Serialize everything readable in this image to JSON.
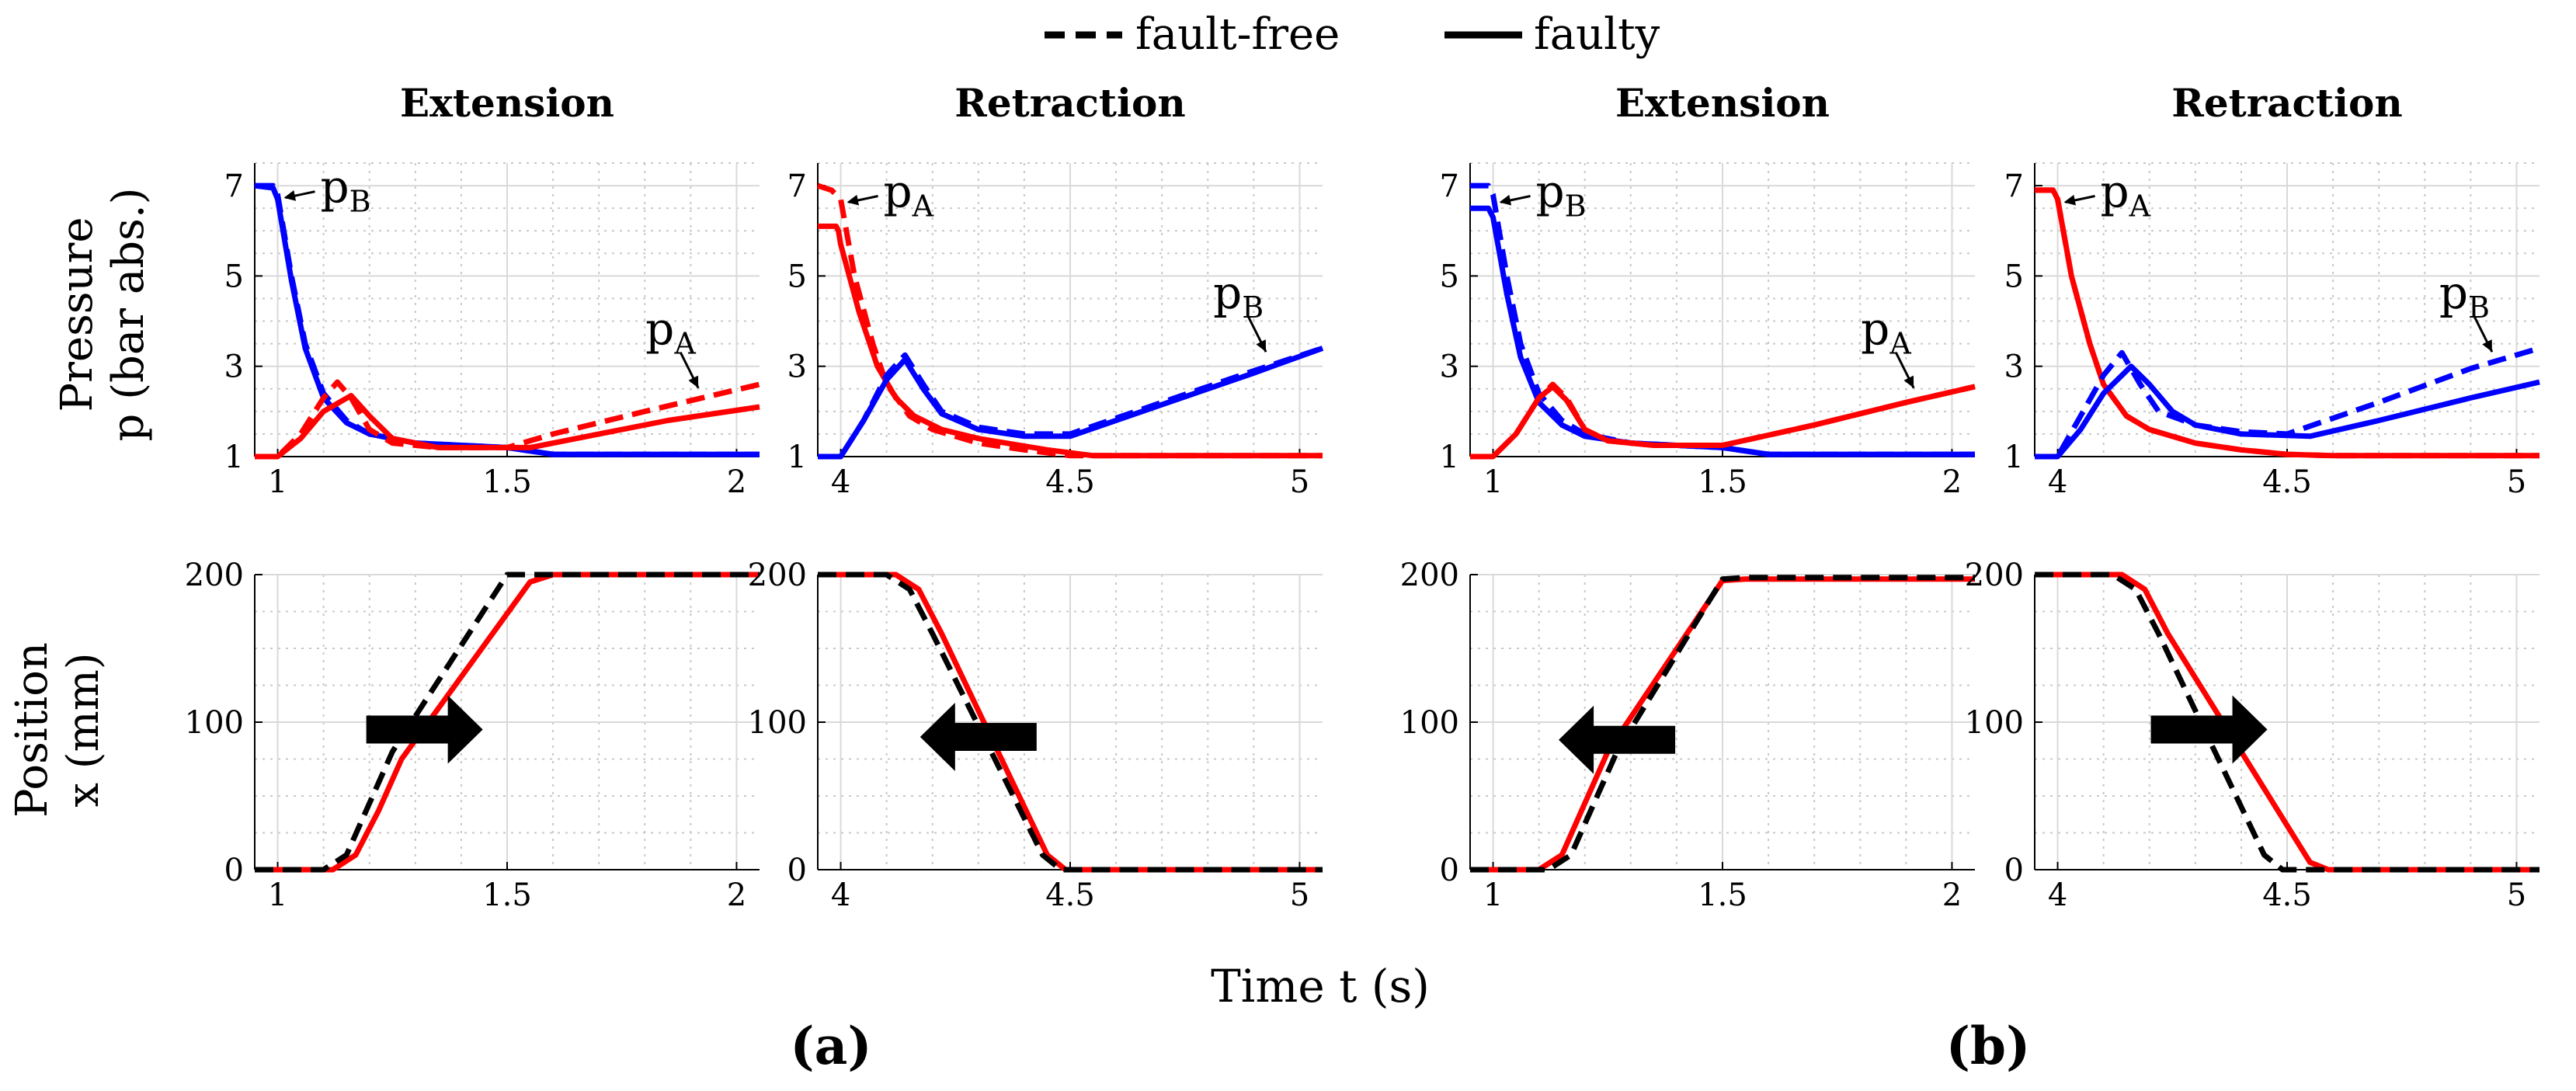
{
  "legend": {
    "dashed_label": "fault-free",
    "solid_label": "faulty"
  },
  "figure": {
    "xlabel": "Time t (s)",
    "row_labels": {
      "pressure_line1": "Pressure",
      "pressure_line2": "p (bar abs.)",
      "position_line1": "Position",
      "position_line2": "x (mm)"
    },
    "sub_labels": [
      "(a)",
      "(b)"
    ]
  },
  "colors": {
    "pA": "#ff0000",
    "pB": "#0000ff",
    "fault_free_position": "#000000",
    "faulty_position": "#ff0000",
    "grid_minor": "#c8c8c8",
    "grid_major": "#d9d9d9"
  },
  "chart_data": [
    {
      "id": "a-ext-p",
      "type": "line",
      "title": "Extension",
      "xlim": [
        0.95,
        2.05
      ],
      "ylim": [
        1,
        7.5
      ],
      "xticks": [
        1,
        1.5,
        2
      ],
      "xtick_labels": [
        "1",
        "1.5",
        "2"
      ],
      "yticks": [
        1,
        3,
        5,
        7
      ],
      "ytick_labels": [
        "1",
        "3",
        "5",
        "7"
      ],
      "ylabel": "Pressure p (bar abs.)",
      "xlabel": "",
      "annotations": [
        {
          "main": "p",
          "sub": "B",
          "series": "pB",
          "x": 1.0,
          "y": 6.8,
          "pos": "right"
        },
        {
          "main": "p",
          "sub": "A",
          "series": "pA",
          "x": 1.92,
          "y": 2.45,
          "pos": "above-left"
        }
      ],
      "series": [
        {
          "name": "pB fault-free",
          "color_key": "pB",
          "dash": true,
          "x": [
            0.95,
            0.99,
            1.0,
            1.03,
            1.06,
            1.1,
            1.15,
            1.2,
            1.3,
            1.5,
            1.6,
            2.05
          ],
          "y": [
            7.0,
            7.0,
            6.8,
            5.0,
            3.5,
            2.4,
            1.8,
            1.5,
            1.3,
            1.2,
            1.05,
            1.05
          ]
        },
        {
          "name": "pB faulty",
          "color_key": "pB",
          "dash": false,
          "x": [
            0.95,
            0.99,
            1.0,
            1.03,
            1.06,
            1.1,
            1.15,
            1.2,
            1.3,
            1.5,
            1.6,
            2.05
          ],
          "y": [
            7.0,
            6.95,
            6.7,
            4.9,
            3.4,
            2.3,
            1.75,
            1.5,
            1.3,
            1.2,
            1.05,
            1.05
          ]
        },
        {
          "name": "pA fault-free",
          "color_key": "pA",
          "dash": true,
          "x": [
            0.95,
            1.0,
            1.05,
            1.1,
            1.13,
            1.16,
            1.2,
            1.25,
            1.35,
            1.5,
            1.6,
            1.8,
            2.05
          ],
          "y": [
            1.0,
            1.0,
            1.5,
            2.3,
            2.65,
            2.3,
            1.6,
            1.3,
            1.2,
            1.2,
            1.5,
            2.0,
            2.6
          ]
        },
        {
          "name": "pA faulty",
          "color_key": "pA",
          "dash": false,
          "x": [
            0.95,
            1.0,
            1.05,
            1.1,
            1.16,
            1.2,
            1.25,
            1.35,
            1.55,
            1.7,
            1.85,
            2.05
          ],
          "y": [
            1.0,
            1.0,
            1.4,
            2.0,
            2.35,
            1.9,
            1.4,
            1.2,
            1.2,
            1.5,
            1.8,
            2.1
          ]
        }
      ]
    },
    {
      "id": "a-ret-p",
      "type": "line",
      "title": "Retraction",
      "xlim": [
        3.95,
        5.05
      ],
      "ylim": [
        1,
        7.5
      ],
      "xticks": [
        4,
        4.5,
        5
      ],
      "xtick_labels": [
        "4",
        "4.5",
        "5"
      ],
      "yticks": [
        1,
        3,
        5,
        7
      ],
      "ytick_labels": [
        "1",
        "3",
        "5",
        "7"
      ],
      "ylabel": "",
      "xlabel": "",
      "annotations": [
        {
          "main": "p",
          "sub": "A",
          "series": "pA",
          "x": 4.0,
          "y": 6.7,
          "pos": "right"
        },
        {
          "main": "p",
          "sub": "B",
          "series": "pB",
          "x": 4.93,
          "y": 3.25,
          "pos": "above-left"
        }
      ],
      "series": [
        {
          "name": "pA fault-free",
          "color_key": "pA",
          "dash": true,
          "x": [
            3.95,
            3.98,
            4.0,
            4.03,
            4.07,
            4.1,
            4.15,
            4.2,
            4.3,
            4.4,
            4.5,
            5.05
          ],
          "y": [
            7.0,
            6.9,
            6.7,
            5.0,
            3.5,
            2.6,
            1.9,
            1.6,
            1.3,
            1.15,
            1.02,
            1.02
          ]
        },
        {
          "name": "pA faulty",
          "color_key": "pA",
          "dash": false,
          "x": [
            3.95,
            3.99,
            3.995,
            4.0,
            4.04,
            4.08,
            4.12,
            4.16,
            4.22,
            4.3,
            4.45,
            4.55,
            5.05
          ],
          "y": [
            6.1,
            6.1,
            6.0,
            5.7,
            4.2,
            3.0,
            2.3,
            1.9,
            1.6,
            1.4,
            1.15,
            1.02,
            1.02
          ]
        },
        {
          "name": "pB fault-free",
          "color_key": "pB",
          "dash": true,
          "x": [
            3.95,
            4.0,
            4.05,
            4.1,
            4.14,
            4.18,
            4.22,
            4.3,
            4.4,
            4.5,
            4.7,
            4.9,
            5.05
          ],
          "y": [
            1.0,
            1.0,
            1.8,
            2.8,
            3.25,
            2.6,
            2.0,
            1.65,
            1.5,
            1.5,
            2.2,
            2.9,
            3.4
          ]
        },
        {
          "name": "pB faulty",
          "color_key": "pB",
          "dash": false,
          "x": [
            3.95,
            4.0,
            4.05,
            4.1,
            4.14,
            4.18,
            4.22,
            4.3,
            4.4,
            4.5,
            4.7,
            4.9,
            5.05
          ],
          "y": [
            1.0,
            1.0,
            1.8,
            2.7,
            3.15,
            2.5,
            1.95,
            1.6,
            1.45,
            1.45,
            2.15,
            2.85,
            3.4
          ]
        }
      ]
    },
    {
      "id": "b-ext-p",
      "type": "line",
      "title": "Extension",
      "xlim": [
        0.95,
        2.05
      ],
      "ylim": [
        1,
        7.5
      ],
      "xticks": [
        1,
        1.5,
        2
      ],
      "xtick_labels": [
        "1",
        "1.5",
        "2"
      ],
      "yticks": [
        1,
        3,
        5,
        7
      ],
      "ytick_labels": [
        "1",
        "3",
        "5",
        "7"
      ],
      "ylabel": "",
      "xlabel": "",
      "annotations": [
        {
          "main": "p",
          "sub": "B",
          "series": "pB",
          "x": 1.0,
          "y": 6.7,
          "pos": "right"
        },
        {
          "main": "p",
          "sub": "A",
          "series": "pA",
          "x": 1.92,
          "y": 2.45,
          "pos": "above-left"
        }
      ],
      "series": [
        {
          "name": "pB fault-free",
          "color_key": "pB",
          "dash": true,
          "x": [
            0.95,
            0.99,
            1.0,
            1.03,
            1.06,
            1.1,
            1.15,
            1.2,
            1.3,
            1.5,
            1.6,
            2.05
          ],
          "y": [
            7.0,
            7.0,
            6.8,
            5.0,
            3.5,
            2.4,
            1.8,
            1.5,
            1.3,
            1.2,
            1.05,
            1.05
          ]
        },
        {
          "name": "pB faulty",
          "color_key": "pB",
          "dash": false,
          "x": [
            0.95,
            0.99,
            1.0,
            1.03,
            1.06,
            1.1,
            1.15,
            1.2,
            1.3,
            1.5,
            1.6,
            2.05
          ],
          "y": [
            6.5,
            6.5,
            6.3,
            4.6,
            3.2,
            2.2,
            1.7,
            1.45,
            1.3,
            1.2,
            1.05,
            1.05
          ]
        },
        {
          "name": "pA fault-free",
          "color_key": "pA",
          "dash": true,
          "x": [
            0.95,
            1.0,
            1.05,
            1.1,
            1.13,
            1.16,
            1.2,
            1.25,
            1.35,
            1.5,
            1.7,
            1.9,
            2.05
          ],
          "y": [
            1.0,
            1.0,
            1.5,
            2.3,
            2.6,
            2.3,
            1.6,
            1.35,
            1.25,
            1.25,
            1.7,
            2.2,
            2.55
          ]
        },
        {
          "name": "pA faulty",
          "color_key": "pA",
          "dash": false,
          "x": [
            0.95,
            1.0,
            1.05,
            1.1,
            1.13,
            1.16,
            1.2,
            1.25,
            1.35,
            1.5,
            1.7,
            1.9,
            2.05
          ],
          "y": [
            1.0,
            1.0,
            1.5,
            2.3,
            2.55,
            2.25,
            1.6,
            1.35,
            1.25,
            1.25,
            1.7,
            2.2,
            2.55
          ]
        }
      ]
    },
    {
      "id": "b-ret-p",
      "type": "line",
      "title": "Retraction",
      "xlim": [
        3.95,
        5.05
      ],
      "ylim": [
        1,
        7.5
      ],
      "xticks": [
        4,
        4.5,
        5
      ],
      "xtick_labels": [
        "4",
        "4.5",
        "5"
      ],
      "yticks": [
        1,
        3,
        5,
        7
      ],
      "ytick_labels": [
        "1",
        "3",
        "5",
        "7"
      ],
      "ylabel": "",
      "xlabel": "",
      "annotations": [
        {
          "main": "p",
          "sub": "A",
          "series": "pA",
          "x": 4.0,
          "y": 6.7,
          "pos": "right"
        },
        {
          "main": "p",
          "sub": "B",
          "series": "pB",
          "x": 4.95,
          "y": 3.25,
          "pos": "above-left"
        }
      ],
      "series": [
        {
          "name": "pA fault-free",
          "color_key": "pA",
          "dash": true,
          "x": [
            3.95,
            3.99,
            4.0,
            4.03,
            4.07,
            4.1,
            4.15,
            4.2,
            4.3,
            4.4,
            4.5,
            4.6,
            5.05
          ],
          "y": [
            6.9,
            6.9,
            6.7,
            5.0,
            3.5,
            2.6,
            1.9,
            1.6,
            1.3,
            1.15,
            1.05,
            1.02,
            1.02
          ]
        },
        {
          "name": "pA faulty",
          "color_key": "pA",
          "dash": false,
          "x": [
            3.95,
            3.99,
            4.0,
            4.03,
            4.07,
            4.1,
            4.15,
            4.2,
            4.3,
            4.4,
            4.5,
            4.6,
            5.05
          ],
          "y": [
            6.9,
            6.9,
            6.7,
            5.0,
            3.5,
            2.6,
            1.9,
            1.6,
            1.3,
            1.15,
            1.05,
            1.02,
            1.02
          ]
        },
        {
          "name": "pB fault-free",
          "color_key": "pB",
          "dash": true,
          "x": [
            3.95,
            4.0,
            4.05,
            4.1,
            4.14,
            4.18,
            4.22,
            4.3,
            4.4,
            4.5,
            4.7,
            4.9,
            5.05
          ],
          "y": [
            1.0,
            1.0,
            1.9,
            2.8,
            3.3,
            2.6,
            2.0,
            1.7,
            1.55,
            1.5,
            2.2,
            2.95,
            3.4
          ]
        },
        {
          "name": "pB faulty",
          "color_key": "pB",
          "dash": false,
          "x": [
            3.95,
            4.0,
            4.05,
            4.1,
            4.16,
            4.2,
            4.25,
            4.3,
            4.4,
            4.55,
            4.7,
            4.9,
            5.05
          ],
          "y": [
            1.0,
            1.0,
            1.6,
            2.4,
            3.0,
            2.6,
            2.0,
            1.7,
            1.5,
            1.45,
            1.8,
            2.3,
            2.65
          ]
        }
      ]
    },
    {
      "id": "a-ext-x",
      "type": "line",
      "title": "",
      "xlim": [
        0.95,
        2.05
      ],
      "ylim": [
        0,
        200
      ],
      "xticks": [
        1,
        1.5,
        2
      ],
      "xtick_labels": [
        "1",
        "1.5",
        "2"
      ],
      "yticks": [
        0,
        100,
        200
      ],
      "ytick_labels": [
        "0",
        "100",
        "200"
      ],
      "ylabel": "Position x (mm)",
      "xlabel": "",
      "arrow": {
        "direction": "right",
        "x": 1.32,
        "y": 95
      },
      "series": [
        {
          "name": "position fault-free",
          "color_key": "fault_free_position",
          "dash": true,
          "x": [
            0.95,
            1.1,
            1.15,
            1.2,
            1.25,
            1.5,
            1.55,
            2.05
          ],
          "y": [
            0,
            0,
            10,
            45,
            80,
            200,
            200,
            200
          ]
        },
        {
          "name": "position faulty",
          "color_key": "faulty_position",
          "dash": false,
          "x": [
            0.95,
            1.12,
            1.17,
            1.22,
            1.27,
            1.55,
            1.6,
            2.05
          ],
          "y": [
            0,
            0,
            10,
            40,
            75,
            195,
            200,
            200
          ]
        }
      ]
    },
    {
      "id": "a-ret-x",
      "type": "line",
      "title": "",
      "xlim": [
        3.95,
        5.05
      ],
      "ylim": [
        0,
        200
      ],
      "xticks": [
        4,
        4.5,
        5
      ],
      "xtick_labels": [
        "4",
        "4.5",
        "5"
      ],
      "yticks": [
        0,
        100,
        200
      ],
      "ytick_labels": [
        "0",
        "100",
        "200"
      ],
      "ylabel": "",
      "xlabel": "",
      "arrow": {
        "direction": "left",
        "x": 4.3,
        "y": 90
      },
      "series": [
        {
          "name": "position fault-free",
          "color_key": "fault_free_position",
          "dash": true,
          "x": [
            3.95,
            4.1,
            4.15,
            4.2,
            4.44,
            4.48,
            5.05
          ],
          "y": [
            200,
            200,
            190,
            160,
            10,
            0,
            0
          ]
        },
        {
          "name": "position faulty",
          "color_key": "faulty_position",
          "dash": false,
          "x": [
            3.95,
            4.12,
            4.17,
            4.22,
            4.45,
            4.49,
            5.05
          ],
          "y": [
            200,
            200,
            190,
            160,
            10,
            0,
            0
          ]
        }
      ]
    },
    {
      "id": "b-ext-x",
      "type": "line",
      "title": "",
      "xlim": [
        0.95,
        2.05
      ],
      "ylim": [
        0,
        200
      ],
      "xticks": [
        1,
        1.5,
        2
      ],
      "xtick_labels": [
        "1",
        "1.5",
        "2"
      ],
      "yticks": [
        0,
        100,
        200
      ],
      "ytick_labels": [
        "0",
        "100",
        "200"
      ],
      "ylabel": "",
      "xlabel": "",
      "arrow": {
        "direction": "left",
        "x": 1.27,
        "y": 88
      },
      "series": [
        {
          "name": "position fault-free",
          "color_key": "fault_free_position",
          "dash": true,
          "x": [
            0.95,
            1.12,
            1.17,
            1.22,
            1.27,
            1.5,
            1.55,
            2.05
          ],
          "y": [
            0,
            0,
            10,
            45,
            80,
            197,
            198,
            198
          ]
        },
        {
          "name": "position faulty",
          "color_key": "faulty_position",
          "dash": false,
          "x": [
            0.95,
            1.1,
            1.15,
            1.2,
            1.25,
            1.5,
            1.55,
            2.05
          ],
          "y": [
            0,
            0,
            10,
            45,
            80,
            196,
            197,
            197
          ]
        }
      ]
    },
    {
      "id": "b-ret-x",
      "type": "line",
      "title": "",
      "xlim": [
        3.95,
        5.05
      ],
      "ylim": [
        0,
        200
      ],
      "xticks": [
        4,
        4.5,
        5
      ],
      "xtick_labels": [
        "4",
        "4.5",
        "5"
      ],
      "yticks": [
        0,
        100,
        200
      ],
      "ytick_labels": [
        "0",
        "100",
        "200"
      ],
      "ylabel": "",
      "xlabel": "",
      "arrow": {
        "direction": "right",
        "x": 4.33,
        "y": 95
      },
      "series": [
        {
          "name": "position fault-free",
          "color_key": "fault_free_position",
          "dash": true,
          "x": [
            3.95,
            4.12,
            4.17,
            4.22,
            4.45,
            4.49,
            5.05
          ],
          "y": [
            200,
            200,
            190,
            160,
            10,
            0,
            0
          ]
        },
        {
          "name": "position faulty",
          "color_key": "faulty_position",
          "dash": false,
          "x": [
            3.95,
            4.14,
            4.19,
            4.24,
            4.55,
            4.59,
            5.05
          ],
          "y": [
            200,
            200,
            190,
            160,
            5,
            0,
            0
          ]
        }
      ]
    }
  ]
}
